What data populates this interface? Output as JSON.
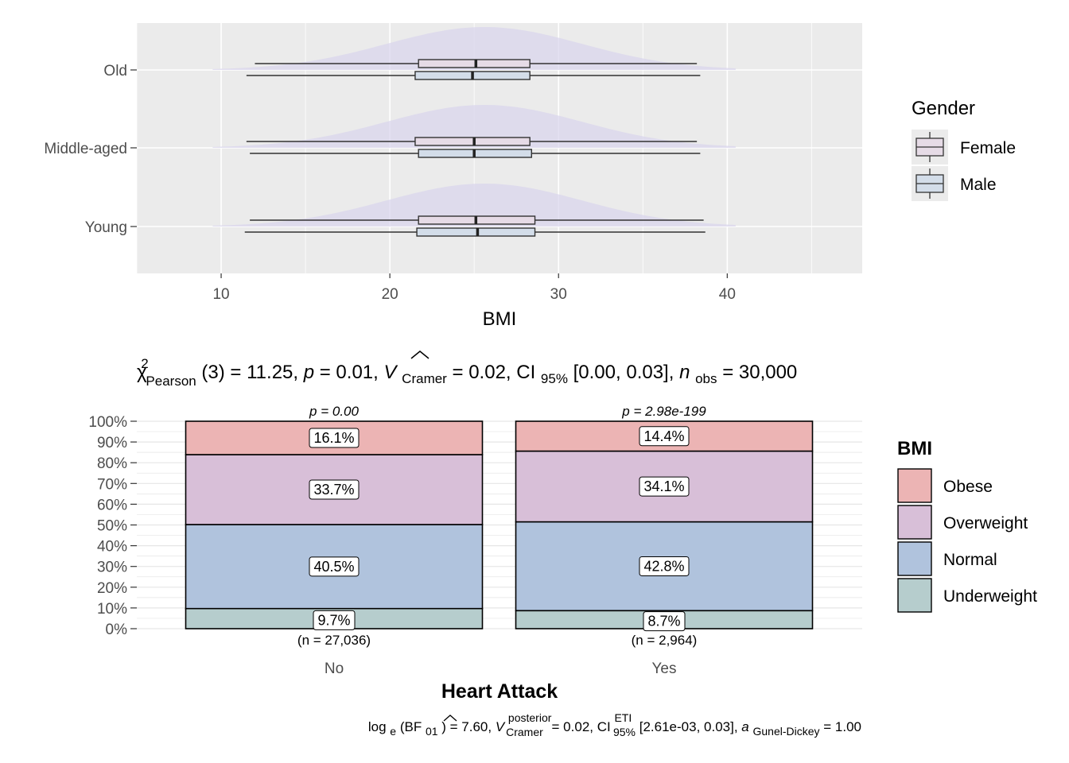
{
  "chart_data": [
    {
      "type": "box",
      "subtype": "horizontal boxplot with half-violin density, grouped by gender",
      "xlabel": "BMI",
      "ylabel": "",
      "xlim": [
        5,
        48
      ],
      "x_ticks": [
        10,
        20,
        30,
        40
      ],
      "grid": true,
      "legend": {
        "title": "Gender",
        "position": "right",
        "entries": [
          "Female",
          "Male"
        ]
      },
      "colors": {
        "Female": "#e6dbe6",
        "Male": "#d3dde9",
        "violin": "#d9d6ec",
        "panel": "#ebebeb"
      },
      "categories": [
        "Old",
        "Middle-aged",
        "Young"
      ],
      "series": [
        {
          "name": "Female",
          "boxes": [
            {
              "category": "Old",
              "min": 12.0,
              "q1": 21.7,
              "median": 25.1,
              "q3": 28.3,
              "max": 38.2
            },
            {
              "category": "Middle-aged",
              "min": 11.5,
              "q1": 21.5,
              "median": 25.0,
              "q3": 28.3,
              "max": 38.2
            },
            {
              "category": "Young",
              "min": 11.7,
              "q1": 21.7,
              "median": 25.1,
              "q3": 28.6,
              "max": 38.6
            }
          ]
        },
        {
          "name": "Male",
          "boxes": [
            {
              "category": "Old",
              "min": 11.5,
              "q1": 21.5,
              "median": 24.9,
              "q3": 28.3,
              "max": 38.4
            },
            {
              "category": "Middle-aged",
              "min": 11.7,
              "q1": 21.7,
              "median": 25.0,
              "q3": 28.4,
              "max": 38.4
            },
            {
              "category": "Young",
              "min": 11.4,
              "q1": 21.6,
              "median": 25.2,
              "q3": 28.6,
              "max": 38.7
            }
          ]
        }
      ]
    },
    {
      "type": "bar",
      "subtype": "100% stacked bar",
      "xlabel": "Heart Attack",
      "ylabel": "",
      "ylim": [
        0,
        100
      ],
      "y_ticks": [
        "0%",
        "10%",
        "20%",
        "30%",
        "40%",
        "50%",
        "60%",
        "70%",
        "80%",
        "90%",
        "100%"
      ],
      "grid": true,
      "categories": [
        "No",
        "Yes"
      ],
      "counts": [
        "(n = 27,036)",
        "(n = 2,964)"
      ],
      "p_values": [
        "p = 0.00",
        "p = 2.98e-199"
      ],
      "legend": {
        "title": "BMI",
        "position": "right",
        "entries": [
          "Obese",
          "Overweight",
          "Normal",
          "Underweight"
        ]
      },
      "series": [
        {
          "name": "Underweight",
          "color": "#b6cdcd",
          "values": [
            9.7,
            8.7
          ],
          "labels": [
            "9.7%",
            "8.7%"
          ]
        },
        {
          "name": "Normal",
          "color": "#b0c3dd",
          "values": [
            40.5,
            42.8
          ],
          "labels": [
            "40.5%",
            "42.8%"
          ]
        },
        {
          "name": "Overweight",
          "color": "#d8bfd8",
          "values": [
            33.7,
            34.1
          ],
          "labels": [
            "33.7%",
            "34.1%"
          ]
        },
        {
          "name": "Obese",
          "color": "#ecb4b4",
          "values": [
            16.1,
            14.4
          ],
          "labels": [
            "16.1%",
            "14.4%"
          ]
        }
      ]
    }
  ],
  "stats": {
    "frequentist": {
      "chi": "χ",
      "sup": "2",
      "sub": "Pearson",
      "df": "(3) = 11.25, ",
      "p_sym": "p",
      "p_val": " = 0.01, ",
      "v_sym": "V",
      "v_sub": "Cramer",
      "v_val": " = 0.02, CI",
      "ci_sub": "95%",
      "ci_val": " [0.00, 0.03], ",
      "n_sym": "n",
      "n_sub": "obs",
      "n_val": " = 30,000"
    },
    "bayes": {
      "log": "log",
      "log_sub": "e",
      "bf": "(BF",
      "bf_sub": "01",
      "bf_val": ") = 7.60, ",
      "v_sym": "V",
      "v_sup": "posterior",
      "v_sub": "Cramer",
      "v_val": " = 0.02, CI",
      "ci_sup": "ETI",
      "ci_sub": "95%",
      "ci_val": " [2.61e-03, 0.03], ",
      "a_sym": "a",
      "a_sub": "Gunel-Dickey",
      "a_val": " = 1.00"
    }
  }
}
